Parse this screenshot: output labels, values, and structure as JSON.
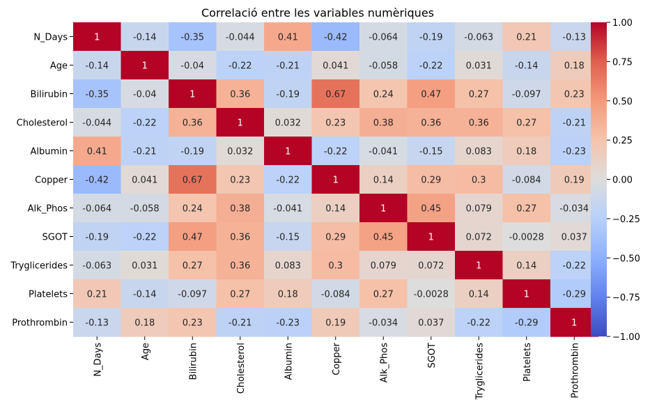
{
  "chart_data": {
    "type": "heatmap",
    "title": "Correlació entre les variables numèriques",
    "xlabel": "",
    "ylabel": "",
    "variables": [
      "N_Days",
      "Age",
      "Bilirubin",
      "Cholesterol",
      "Albumin",
      "Copper",
      "Alk_Phos",
      "SGOT",
      "Tryglicerides",
      "Platelets",
      "Prothrombin"
    ],
    "matrix": [
      [
        "1",
        "-0.14",
        "-0.35",
        "-0.044",
        "0.41",
        "-0.42",
        "-0.064",
        "-0.19",
        "-0.063",
        "0.21",
        "-0.13"
      ],
      [
        "-0.14",
        "1",
        "-0.04",
        "-0.22",
        "-0.21",
        "0.041",
        "-0.058",
        "-0.22",
        "0.031",
        "-0.14",
        "0.18"
      ],
      [
        "-0.35",
        "-0.04",
        "1",
        "0.36",
        "-0.19",
        "0.67",
        "0.24",
        "0.47",
        "0.27",
        "-0.097",
        "0.23"
      ],
      [
        "-0.044",
        "-0.22",
        "0.36",
        "1",
        "0.032",
        "0.23",
        "0.38",
        "0.36",
        "0.36",
        "0.27",
        "-0.21"
      ],
      [
        "0.41",
        "-0.21",
        "-0.19",
        "0.032",
        "1",
        "-0.22",
        "-0.041",
        "-0.15",
        "0.083",
        "0.18",
        "-0.23"
      ],
      [
        "-0.42",
        "0.041",
        "0.67",
        "0.23",
        "-0.22",
        "1",
        "0.14",
        "0.29",
        "0.3",
        "-0.084",
        "0.19"
      ],
      [
        "-0.064",
        "-0.058",
        "0.24",
        "0.38",
        "-0.041",
        "0.14",
        "1",
        "0.45",
        "0.079",
        "0.27",
        "-0.034"
      ],
      [
        "-0.19",
        "-0.22",
        "0.47",
        "0.36",
        "-0.15",
        "0.29",
        "0.45",
        "1",
        "0.072",
        "-0.0028",
        "0.037"
      ],
      [
        "-0.063",
        "0.031",
        "0.27",
        "0.36",
        "0.083",
        "0.3",
        "0.079",
        "0.072",
        "1",
        "0.14",
        "-0.22"
      ],
      [
        "0.21",
        "-0.14",
        "-0.097",
        "0.27",
        "0.18",
        "-0.084",
        "0.27",
        "-0.0028",
        "0.14",
        "1",
        "-0.29"
      ],
      [
        "-0.13",
        "0.18",
        "0.23",
        "-0.21",
        "-0.23",
        "0.19",
        "-0.034",
        "0.037",
        "-0.22",
        "-0.29",
        "1"
      ]
    ],
    "colorbar": {
      "colormap": "coolwarm",
      "vmin": -1,
      "vmax": 1,
      "ticks": [
        "1.00",
        "0.75",
        "0.50",
        "0.25",
        "0.00",
        "−0.25",
        "−0.50",
        "−0.75",
        "−1.00"
      ]
    }
  }
}
